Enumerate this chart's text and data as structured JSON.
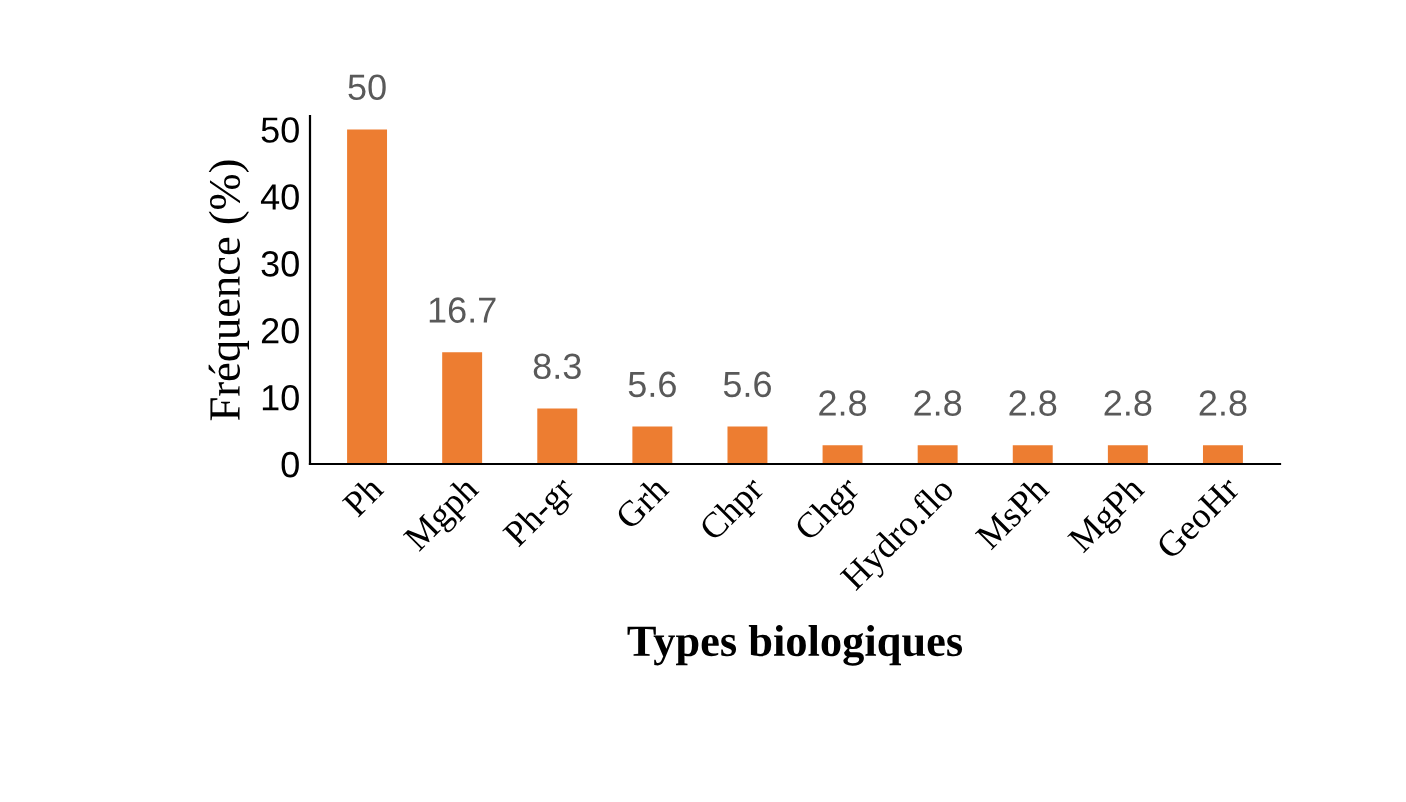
{
  "chart_data": {
    "type": "bar",
    "xlabel": "Types biologiques",
    "ylabel": "Fréquence (%)",
    "categories": [
      "Ph",
      "Mgph",
      "Ph-gr",
      "Grh",
      "Chpr",
      "Chgr",
      "Hydro.flo",
      "MsPh",
      "MgPh",
      "GeoHr"
    ],
    "values": [
      50,
      16.7,
      8.3,
      5.6,
      5.6,
      2.8,
      2.8,
      2.8,
      2.8,
      2.8
    ],
    "color": "#ed7d31",
    "ylim": [
      0,
      52
    ],
    "yticks": [
      0,
      10,
      20,
      30,
      40,
      50
    ],
    "grid": false,
    "data_labels": true
  }
}
